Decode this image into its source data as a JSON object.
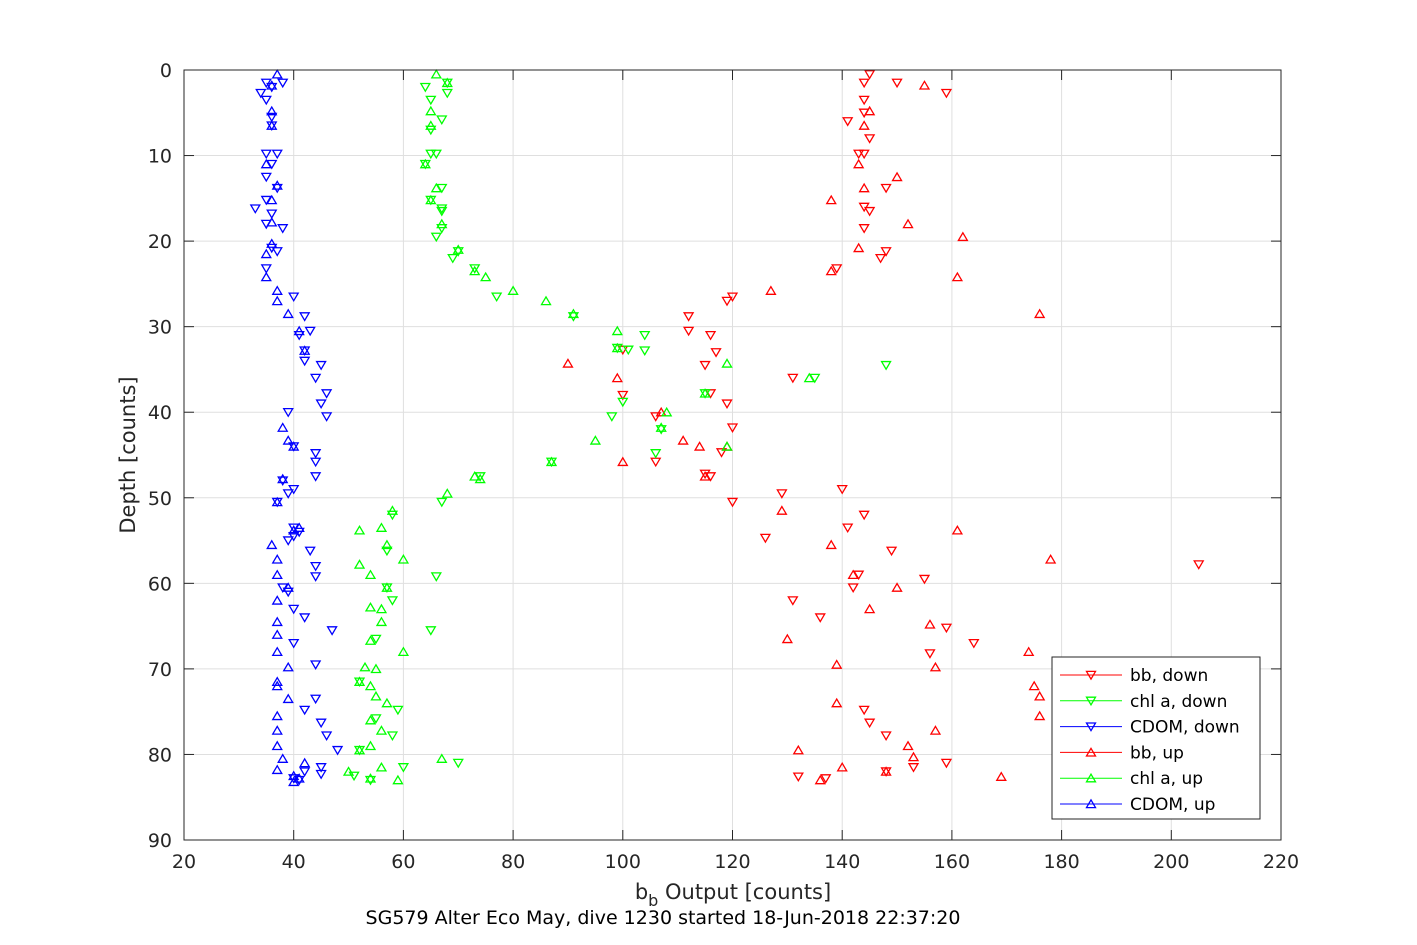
{
  "chart_data": {
    "type": "scatter",
    "xlabel_main": "b",
    "xlabel_sub": "b",
    "xlabel_rest": " Output [counts]",
    "ylabel": "Depth [counts]",
    "caption": "SG579 Alter Eco May, dive 1230 started 18-Jun-2018 22:37:20",
    "xlim": [
      20,
      220
    ],
    "ylim": [
      0,
      90
    ],
    "y_reversed": true,
    "grid": true,
    "x_ticks": [
      20,
      40,
      60,
      80,
      100,
      120,
      140,
      160,
      180,
      200,
      220
    ],
    "y_ticks": [
      0,
      10,
      20,
      30,
      40,
      50,
      60,
      70,
      80,
      90
    ],
    "legend_position": "bottom-right",
    "series": [
      {
        "name": "bb, down",
        "color": "#ff0000",
        "marker": "triangle-down",
        "points": [
          [
            145,
            0.5
          ],
          [
            150,
            1.5
          ],
          [
            144,
            1.5
          ],
          [
            159,
            2.7
          ],
          [
            144,
            3.5
          ],
          [
            141,
            6
          ],
          [
            144,
            5
          ],
          [
            145,
            8
          ],
          [
            143,
            9.8
          ],
          [
            144,
            9.8
          ],
          [
            148,
            13.8
          ],
          [
            144,
            16
          ],
          [
            145,
            16.5
          ],
          [
            144,
            18.5
          ],
          [
            148,
            21.2
          ],
          [
            147,
            22
          ],
          [
            139,
            23.2
          ],
          [
            112,
            28.8
          ],
          [
            120,
            26.5
          ],
          [
            119,
            27
          ],
          [
            112,
            30.5
          ],
          [
            116,
            31
          ],
          [
            100,
            32.7
          ],
          [
            117,
            33
          ],
          [
            115,
            34.5
          ],
          [
            131,
            36
          ],
          [
            116,
            37.8
          ],
          [
            100,
            38
          ],
          [
            119,
            39
          ],
          [
            106,
            40.5
          ],
          [
            120,
            41.8
          ],
          [
            115,
            47.2
          ],
          [
            106,
            45.8
          ],
          [
            116,
            47.5
          ],
          [
            118,
            44.7
          ],
          [
            120,
            50.5
          ],
          [
            129,
            49.5
          ],
          [
            140,
            49
          ],
          [
            126,
            54.7
          ],
          [
            141,
            53.5
          ],
          [
            144,
            52
          ],
          [
            149,
            56.2
          ],
          [
            143,
            59
          ],
          [
            142,
            60.5
          ],
          [
            205,
            57.8
          ],
          [
            131,
            62
          ],
          [
            136,
            64
          ],
          [
            155,
            59.5
          ],
          [
            159,
            65.2
          ],
          [
            164,
            67
          ],
          [
            156,
            68.2
          ],
          [
            144,
            74.8
          ],
          [
            145,
            76.3
          ],
          [
            148,
            77.8
          ],
          [
            137,
            82.8
          ],
          [
            132,
            82.6
          ],
          [
            148,
            82
          ],
          [
            159,
            81
          ],
          [
            153,
            81.5
          ]
        ]
      },
      {
        "name": "chl a, down",
        "color": "#00ff00",
        "marker": "triangle-down",
        "points": [
          [
            68,
            1.5
          ],
          [
            64,
            2
          ],
          [
            68,
            2.7
          ],
          [
            65,
            3.5
          ],
          [
            67,
            5.8
          ],
          [
            65,
            7
          ],
          [
            66,
            9.8
          ],
          [
            65,
            9.8
          ],
          [
            64,
            11
          ],
          [
            67,
            13.8
          ],
          [
            65,
            15.2
          ],
          [
            67,
            16.2
          ],
          [
            67,
            16.5
          ],
          [
            67,
            18.5
          ],
          [
            66,
            19.5
          ],
          [
            70,
            21.2
          ],
          [
            69,
            22
          ],
          [
            73,
            23.2
          ],
          [
            77,
            26.5
          ],
          [
            91,
            28.8
          ],
          [
            104,
            31
          ],
          [
            99,
            32.5
          ],
          [
            104,
            32.8
          ],
          [
            101,
            32.7
          ],
          [
            148,
            34.5
          ],
          [
            135,
            36
          ],
          [
            115,
            37.8
          ],
          [
            100,
            38.8
          ],
          [
            98,
            40.5
          ],
          [
            107,
            42
          ],
          [
            106,
            44.8
          ],
          [
            87,
            45.8
          ],
          [
            74,
            47.5
          ],
          [
            67,
            50.5
          ],
          [
            58,
            52
          ],
          [
            57,
            56.2
          ],
          [
            66,
            59.2
          ],
          [
            57,
            60.5
          ],
          [
            58,
            62
          ],
          [
            65,
            65.5
          ],
          [
            55,
            66.5
          ],
          [
            52,
            71.5
          ],
          [
            59,
            74.8
          ],
          [
            55,
            75.8
          ],
          [
            58,
            77.8
          ],
          [
            52,
            79.5
          ],
          [
            70,
            81
          ],
          [
            60,
            81.5
          ],
          [
            51,
            82.5
          ],
          [
            54,
            83
          ]
        ]
      },
      {
        "name": "CDOM, down",
        "color": "#0000ff",
        "marker": "triangle-down",
        "points": [
          [
            38,
            1.5
          ],
          [
            35,
            1.5
          ],
          [
            36,
            2
          ],
          [
            34,
            2.7
          ],
          [
            35,
            3.5
          ],
          [
            36,
            5.5
          ],
          [
            36,
            6.5
          ],
          [
            37,
            9.8
          ],
          [
            35,
            9.8
          ],
          [
            36,
            11
          ],
          [
            35,
            12.5
          ],
          [
            37,
            13.8
          ],
          [
            33,
            16.2
          ],
          [
            35,
            15.2
          ],
          [
            36,
            16.8
          ],
          [
            38,
            18.5
          ],
          [
            35,
            18
          ],
          [
            36,
            20.8
          ],
          [
            37,
            21.2
          ],
          [
            35,
            23.2
          ],
          [
            40,
            26.5
          ],
          [
            42,
            28.8
          ],
          [
            43,
            30.5
          ],
          [
            41,
            31
          ],
          [
            42,
            32.8
          ],
          [
            45,
            34.5
          ],
          [
            42,
            34
          ],
          [
            46,
            37.8
          ],
          [
            44,
            36
          ],
          [
            45,
            39
          ],
          [
            46,
            40.5
          ],
          [
            39,
            40
          ],
          [
            44,
            44.8
          ],
          [
            40,
            44
          ],
          [
            44,
            45.8
          ],
          [
            44,
            47.5
          ],
          [
            38,
            48
          ],
          [
            40,
            49
          ],
          [
            39,
            49.5
          ],
          [
            37,
            50.5
          ],
          [
            40,
            53.5
          ],
          [
            41,
            54
          ],
          [
            40,
            54.5
          ],
          [
            39,
            55
          ],
          [
            43,
            56.2
          ],
          [
            44,
            58
          ],
          [
            44,
            59.2
          ],
          [
            38,
            60.5
          ],
          [
            39,
            61
          ],
          [
            40,
            63
          ],
          [
            42,
            64
          ],
          [
            47,
            65.5
          ],
          [
            40,
            67
          ],
          [
            44,
            69.5
          ],
          [
            42,
            74.8
          ],
          [
            44,
            73.5
          ],
          [
            45,
            76.3
          ],
          [
            46,
            77.8
          ],
          [
            48,
            79.5
          ],
          [
            45,
            81.5
          ],
          [
            42,
            82
          ],
          [
            45,
            82.3
          ],
          [
            40,
            82.8
          ],
          [
            41,
            83
          ]
        ]
      },
      {
        "name": "bb, up",
        "color": "#ff0000",
        "marker": "triangle-up",
        "points": [
          [
            155,
            1.8
          ],
          [
            145,
            4.8
          ],
          [
            144,
            6.5
          ],
          [
            143,
            11
          ],
          [
            150,
            12.5
          ],
          [
            144,
            13.8
          ],
          [
            138,
            15.2
          ],
          [
            152,
            18
          ],
          [
            162,
            19.5
          ],
          [
            143,
            20.8
          ],
          [
            161,
            24.2
          ],
          [
            127,
            25.8
          ],
          [
            176,
            28.5
          ],
          [
            138,
            23.5
          ],
          [
            90,
            34.3
          ],
          [
            99,
            36
          ],
          [
            107,
            40
          ],
          [
            111,
            43.3
          ],
          [
            114,
            44
          ],
          [
            119,
            44
          ],
          [
            100,
            45.8
          ],
          [
            115,
            47.5
          ],
          [
            129,
            51.5
          ],
          [
            138,
            55.5
          ],
          [
            161,
            53.8
          ],
          [
            178,
            57.2
          ],
          [
            142,
            59
          ],
          [
            150,
            60.5
          ],
          [
            145,
            63
          ],
          [
            156,
            64.8
          ],
          [
            130,
            66.5
          ],
          [
            157,
            69.8
          ],
          [
            174,
            68
          ],
          [
            139,
            69.5
          ],
          [
            175,
            72
          ],
          [
            176,
            73.2
          ],
          [
            176,
            75.5
          ],
          [
            139,
            74
          ],
          [
            157,
            77.2
          ],
          [
            152,
            79
          ],
          [
            153,
            80.3
          ],
          [
            140,
            81.5
          ],
          [
            136,
            83
          ],
          [
            169,
            82.6
          ],
          [
            132,
            79.5
          ],
          [
            148,
            82
          ]
        ]
      },
      {
        "name": "chl a, up",
        "color": "#00ff00",
        "marker": "triangle-up",
        "points": [
          [
            66,
            0.5
          ],
          [
            68,
            1.5
          ],
          [
            65,
            4.8
          ],
          [
            65,
            6.5
          ],
          [
            64,
            11
          ],
          [
            66,
            13.8
          ],
          [
            65,
            15.2
          ],
          [
            67,
            18
          ],
          [
            70,
            21
          ],
          [
            73,
            23.5
          ],
          [
            75,
            24.2
          ],
          [
            80,
            25.8
          ],
          [
            86,
            27
          ],
          [
            91,
            28.5
          ],
          [
            99,
            30.5
          ],
          [
            99,
            32.5
          ],
          [
            119,
            34.3
          ],
          [
            134,
            36
          ],
          [
            115,
            37.8
          ],
          [
            108,
            40
          ],
          [
            107,
            41.8
          ],
          [
            95,
            43.3
          ],
          [
            119,
            44
          ],
          [
            87,
            45.8
          ],
          [
            73,
            47.5
          ],
          [
            74,
            47.8
          ],
          [
            68,
            49.5
          ],
          [
            58,
            51.5
          ],
          [
            52,
            53.8
          ],
          [
            56,
            53.5
          ],
          [
            57,
            55.5
          ],
          [
            60,
            57.2
          ],
          [
            52,
            57.8
          ],
          [
            54,
            59
          ],
          [
            57,
            60.5
          ],
          [
            54,
            62.8
          ],
          [
            56,
            63
          ],
          [
            56,
            64.5
          ],
          [
            54,
            66.7
          ],
          [
            60,
            68
          ],
          [
            53,
            69.8
          ],
          [
            55,
            70
          ],
          [
            52,
            71.5
          ],
          [
            54,
            72
          ],
          [
            55,
            73.2
          ],
          [
            57,
            74
          ],
          [
            54,
            76
          ],
          [
            56,
            77.2
          ],
          [
            54,
            79
          ],
          [
            52,
            79.5
          ],
          [
            67,
            80.5
          ],
          [
            56,
            81.5
          ],
          [
            50,
            82
          ],
          [
            54,
            82.8
          ],
          [
            59,
            83
          ]
        ]
      },
      {
        "name": "CDOM, up",
        "color": "#0000ff",
        "marker": "triangle-up",
        "points": [
          [
            37,
            0.5
          ],
          [
            36,
            1.8
          ],
          [
            36,
            4.8
          ],
          [
            36,
            6.5
          ],
          [
            35,
            11
          ],
          [
            37,
            13.5
          ],
          [
            36,
            15.2
          ],
          [
            36,
            17.8
          ],
          [
            36,
            20.3
          ],
          [
            35,
            21.5
          ],
          [
            35,
            24.2
          ],
          [
            37,
            25.8
          ],
          [
            37,
            27
          ],
          [
            39,
            28.5
          ],
          [
            41,
            30.5
          ],
          [
            42,
            32.8
          ],
          [
            38,
            41.8
          ],
          [
            39,
            43.3
          ],
          [
            40,
            44
          ],
          [
            38,
            47.8
          ],
          [
            37,
            50.5
          ],
          [
            40,
            53.8
          ],
          [
            41,
            53.5
          ],
          [
            36,
            55.5
          ],
          [
            37,
            57.2
          ],
          [
            37,
            59
          ],
          [
            39,
            60.5
          ],
          [
            37,
            62
          ],
          [
            37,
            64.5
          ],
          [
            37,
            66
          ],
          [
            37,
            68
          ],
          [
            39,
            69.8
          ],
          [
            37,
            71.5
          ],
          [
            37,
            72
          ],
          [
            39,
            73.5
          ],
          [
            37,
            75.5
          ],
          [
            37,
            77.2
          ],
          [
            37,
            79
          ],
          [
            38,
            80.5
          ],
          [
            37,
            81.8
          ],
          [
            42,
            81
          ],
          [
            40,
            82.5
          ],
          [
            41,
            82.8
          ],
          [
            40,
            83.2
          ]
        ]
      }
    ]
  }
}
